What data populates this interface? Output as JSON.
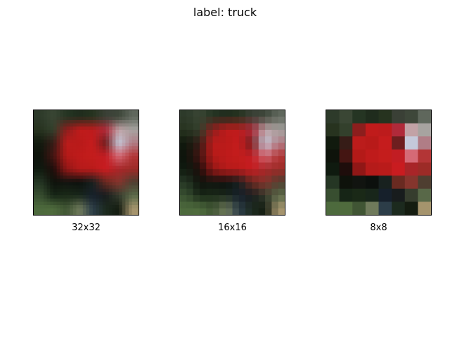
{
  "figure": {
    "title": "label: truck"
  },
  "panels": [
    {
      "caption": "32x32",
      "resolution": 32
    },
    {
      "caption": "16x16",
      "resolution": 16
    },
    {
      "caption": "8x8",
      "resolution": 8
    }
  ],
  "image_grid_8x8": [
    [
      "#2d3a2a",
      "#3a4634",
      "#253523",
      "#1f2c1d",
      "#26331f",
      "#3a4036",
      "#3e473a",
      "#5f675c"
    ],
    [
      "#27331f",
      "#33402c",
      "#8c1e1d",
      "#c01b1b",
      "#bd1b1c",
      "#b02a3a",
      "#c2a2a6",
      "#a7a3a0"
    ],
    [
      "#111a0e",
      "#361c17",
      "#bb1c1b",
      "#b81a19",
      "#c51c1d",
      "#6e1e1f",
      "#c4c9da",
      "#b07d86"
    ],
    [
      "#0e130b",
      "#441512",
      "#b41a18",
      "#bf1b1b",
      "#c41d1c",
      "#c21d23",
      "#d56a76",
      "#b33536"
    ],
    [
      "#0f1a0f",
      "#1e0d0b",
      "#901716",
      "#b51b1a",
      "#b91b1a",
      "#c91c20",
      "#a82528",
      "#9c2b27"
    ],
    [
      "#253624",
      "#0e120b",
      "#111410",
      "#0c100d",
      "#18211f",
      "#692a21",
      "#85352d",
      "#4e3e30"
    ],
    [
      "#384e30",
      "#162516",
      "#1a2917",
      "#18261a",
      "#16202b",
      "#181c1d",
      "#363d2e",
      "#586848"
    ],
    [
      "#4d6a3d",
      "#4f6b3d",
      "#405534",
      "#6f7a5b",
      "#2c3d48",
      "#1c2a1e",
      "#141c10",
      "#a5946d"
    ]
  ]
}
